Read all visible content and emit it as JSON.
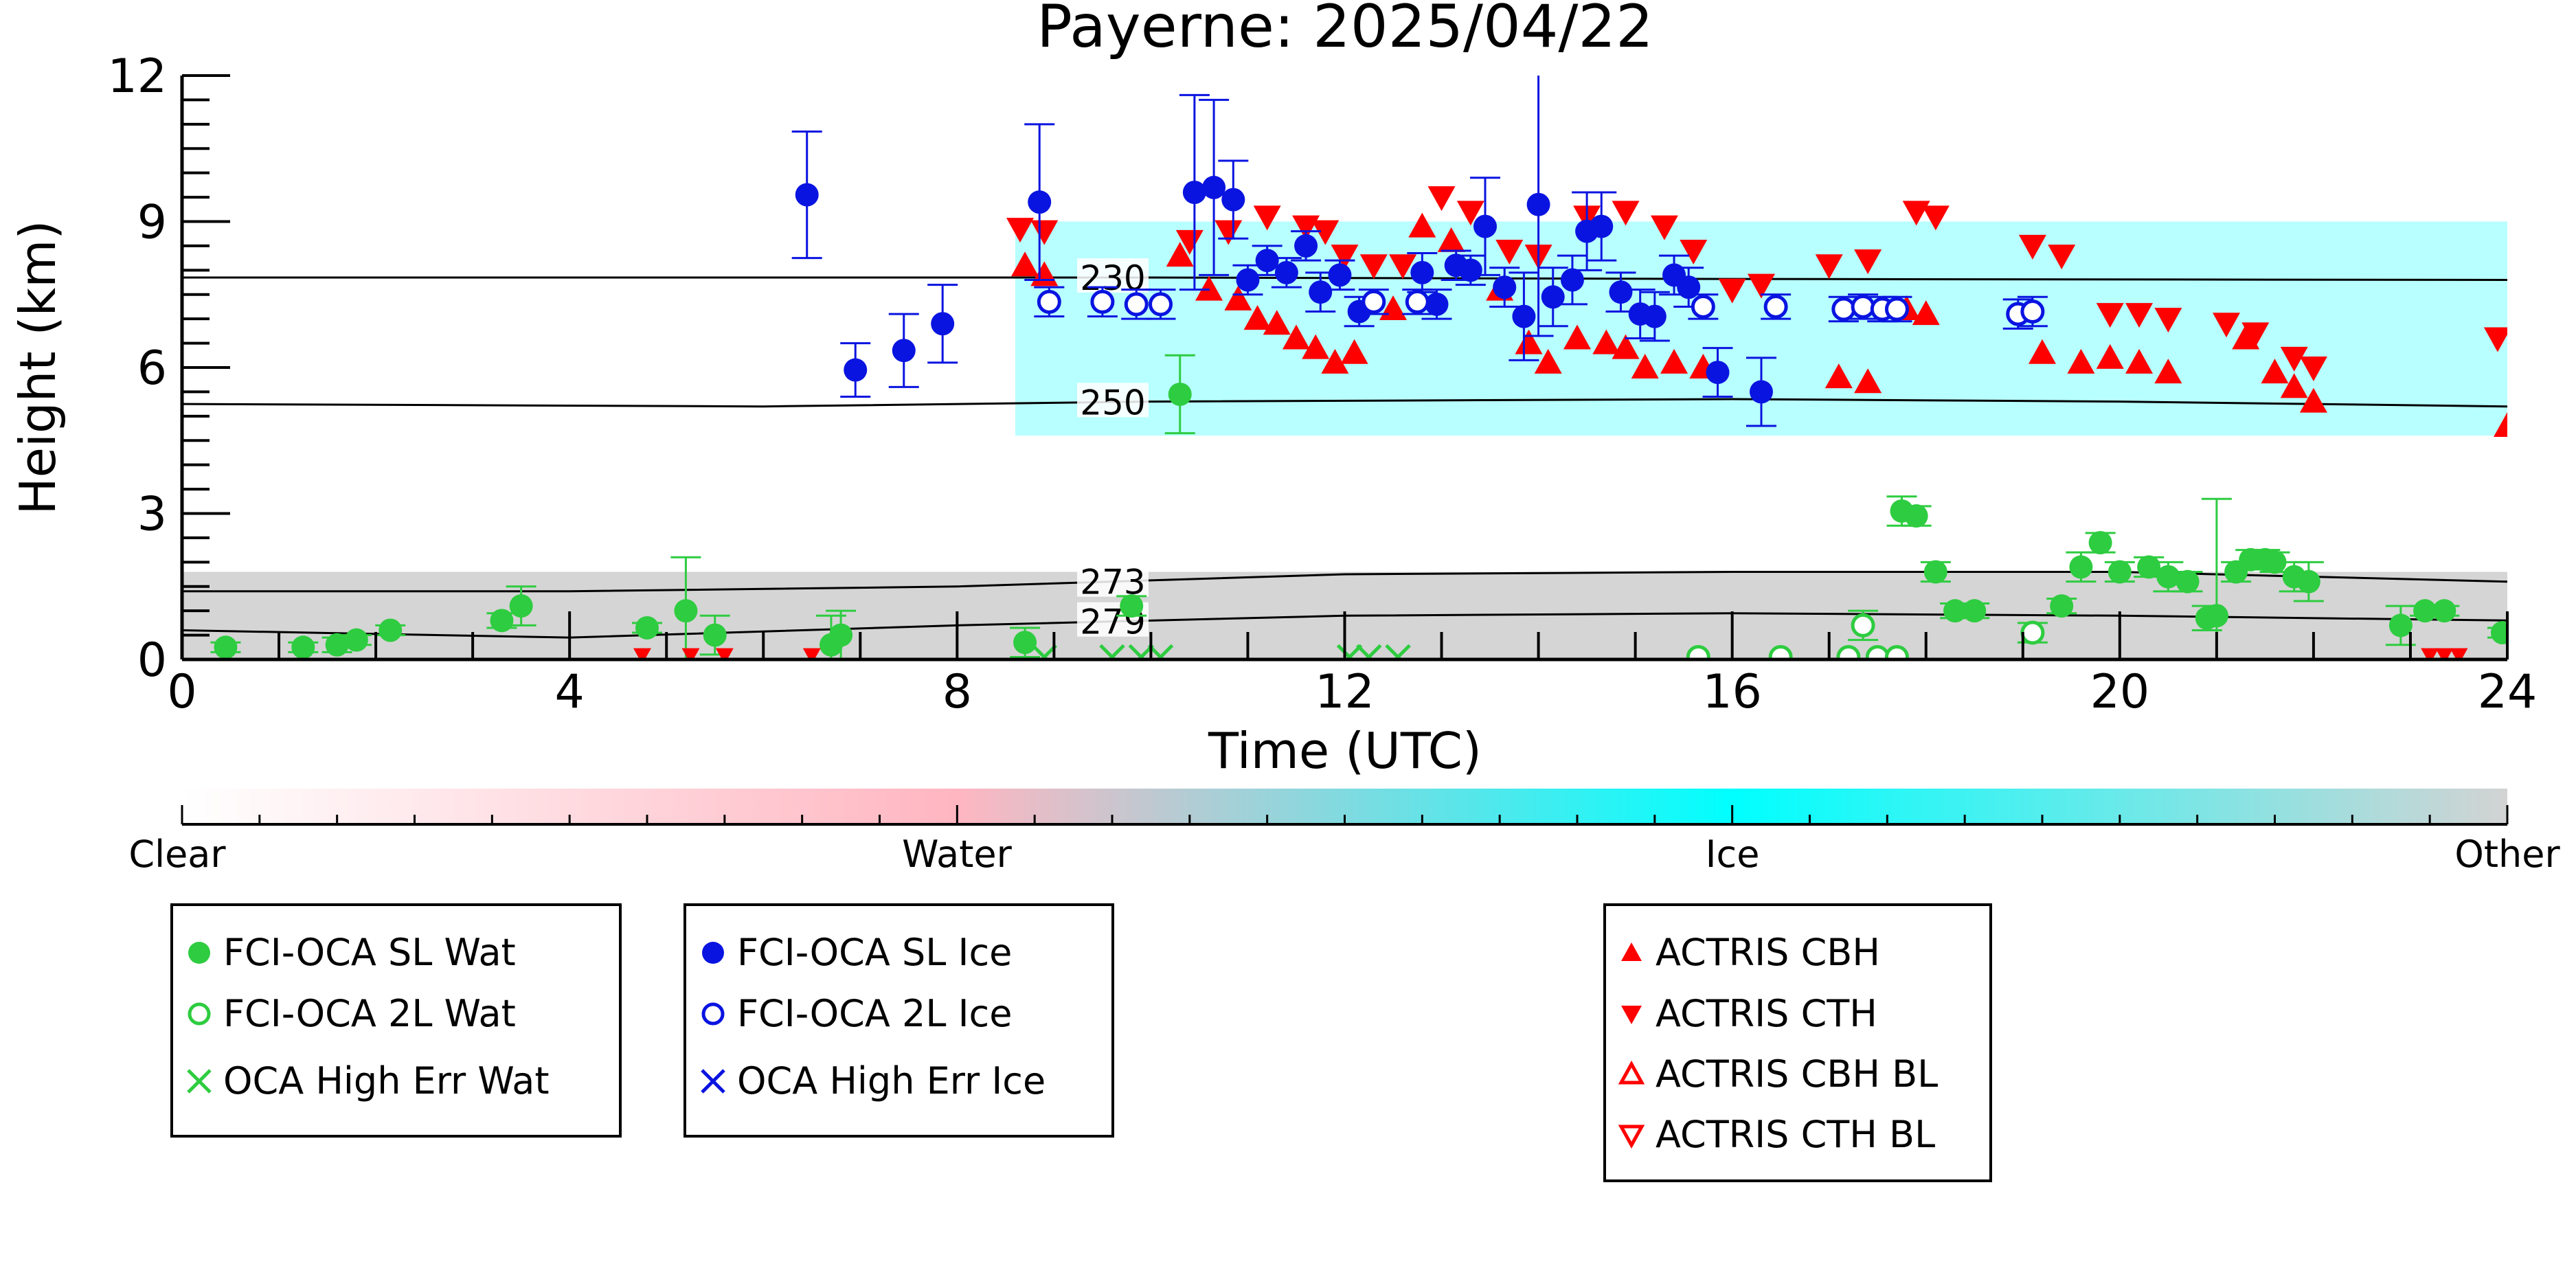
{
  "chart_data": {
    "type": "scatter",
    "title": "Payerne: 2025/04/22",
    "xlabel": "Time (UTC)",
    "ylabel": "Height (km)",
    "xlim": [
      0,
      24
    ],
    "ylim": [
      0,
      12
    ],
    "x_ticks": [
      0,
      4,
      8,
      12,
      16,
      20,
      24
    ],
    "y_ticks": [
      0,
      3,
      6,
      9,
      12
    ],
    "grid": false,
    "colorbar": {
      "labels": [
        "Clear",
        "Water",
        "Ice",
        "Other"
      ],
      "colors": {
        "Clear": "#ffffff",
        "Water": "#ffb6c1",
        "Ice": "#00ffff",
        "Other": "#d3d3d3"
      }
    },
    "background_layers": [
      {
        "class": "Other",
        "x_range": [
          0,
          24
        ],
        "y_range": [
          0,
          1.8
        ],
        "color": "#d3d3d3"
      },
      {
        "class": "Ice",
        "x_range": [
          8.6,
          24
        ],
        "y_range": [
          4.6,
          9.0
        ],
        "color": "#00ffff"
      }
    ],
    "contours": [
      {
        "label": "230",
        "points": [
          [
            0,
            7.85
          ],
          [
            6,
            7.85
          ],
          [
            10,
            7.85
          ],
          [
            16,
            7.82
          ],
          [
            24,
            7.8
          ]
        ]
      },
      {
        "label": "250",
        "points": [
          [
            0,
            5.25
          ],
          [
            6,
            5.2
          ],
          [
            10,
            5.3
          ],
          [
            16,
            5.35
          ],
          [
            20,
            5.3
          ],
          [
            24,
            5.2
          ]
        ]
      },
      {
        "label": "273",
        "points": [
          [
            0,
            1.4
          ],
          [
            4,
            1.4
          ],
          [
            8,
            1.5
          ],
          [
            12,
            1.75
          ],
          [
            16,
            1.8
          ],
          [
            20,
            1.8
          ],
          [
            24,
            1.6
          ]
        ]
      },
      {
        "label": "279",
        "points": [
          [
            0,
            0.6
          ],
          [
            4,
            0.45
          ],
          [
            8,
            0.7
          ],
          [
            12,
            0.9
          ],
          [
            16,
            0.95
          ],
          [
            20,
            0.9
          ],
          [
            24,
            0.8
          ]
        ]
      }
    ],
    "legend": [
      [
        "FCI-OCA SL Wat",
        "FCI-OCA 2L Wat",
        "OCA High Err Wat"
      ],
      [
        "FCI-OCA SL Ice",
        "FCI-OCA 2L Ice",
        "OCA High Err Ice"
      ],
      [
        "ACTRIS CBH",
        "ACTRIS CTH",
        "ACTRIS CBH BL",
        "ACTRIS CTH BL"
      ]
    ],
    "series": [
      {
        "name": "FCI-OCA SL Wat",
        "marker": "circle-filled",
        "color": "#2ecc40",
        "points": [
          [
            0.45,
            0.25,
            0.1
          ],
          [
            1.25,
            0.25,
            0.1
          ],
          [
            1.6,
            0.3,
            0.15
          ],
          [
            1.8,
            0.4,
            0.1
          ],
          [
            2.15,
            0.6,
            0.1
          ],
          [
            3.3,
            0.8,
            0.15
          ],
          [
            3.5,
            1.1,
            0.4
          ],
          [
            4.8,
            0.65,
            0.1
          ],
          [
            5.2,
            1.0,
            1.1
          ],
          [
            5.5,
            0.5,
            0.4
          ],
          [
            6.7,
            0.3,
            0.6
          ],
          [
            6.8,
            0.5,
            0.5
          ],
          [
            8.7,
            0.35,
            0.3
          ],
          [
            9.8,
            1.1,
            0.2
          ],
          [
            10.3,
            5.45,
            0.8
          ],
          [
            17.75,
            3.05,
            0.3
          ],
          [
            17.9,
            2.95,
            0.2
          ],
          [
            18.1,
            1.8,
            0.2
          ],
          [
            18.3,
            1.0,
            0.15
          ],
          [
            18.5,
            1.0,
            0.15
          ],
          [
            19.4,
            1.1,
            0.15
          ],
          [
            19.6,
            1.9,
            0.3
          ],
          [
            19.8,
            2.4,
            0.2
          ],
          [
            20.0,
            1.8,
            0.2
          ],
          [
            20.3,
            1.9,
            0.2
          ],
          [
            20.5,
            1.7,
            0.3
          ],
          [
            20.7,
            1.6,
            0.2
          ],
          [
            20.9,
            0.85,
            0.25
          ],
          [
            21.0,
            0.9,
            2.4
          ],
          [
            21.2,
            1.8,
            0.2
          ],
          [
            21.35,
            2.05,
            0.2
          ],
          [
            21.5,
            2.05,
            0.2
          ],
          [
            21.6,
            2.0,
            0.2
          ],
          [
            21.8,
            1.7,
            0.3
          ],
          [
            21.95,
            1.6,
            0.4
          ],
          [
            22.9,
            0.7,
            0.4
          ],
          [
            23.15,
            1.0,
            0.1
          ],
          [
            23.35,
            1.0,
            0.1
          ],
          [
            23.95,
            0.55,
            0.1
          ]
        ]
      },
      {
        "name": "FCI-OCA 2L Wat",
        "marker": "circle-open",
        "color": "#2ecc40",
        "points": [
          [
            15.65,
            0.05,
            0
          ],
          [
            16.5,
            0.05,
            0
          ],
          [
            17.2,
            0.05,
            0
          ],
          [
            17.35,
            0.7,
            0.3
          ],
          [
            17.5,
            0.05,
            0
          ],
          [
            17.7,
            0.05,
            0
          ],
          [
            19.1,
            0.55,
            0.2
          ]
        ]
      },
      {
        "name": "OCA High Err Wat",
        "marker": "x",
        "color": "#2ecc40",
        "points": [
          [
            8.9,
            0.05
          ],
          [
            9.6,
            0.05
          ],
          [
            9.9,
            0.05
          ],
          [
            10.1,
            0.05
          ],
          [
            12.05,
            0.05
          ],
          [
            12.25,
            0.05
          ],
          [
            12.55,
            0.05
          ]
        ]
      },
      {
        "name": "FCI-OCA SL Ice",
        "marker": "circle-filled",
        "color": "#0a14e0",
        "points": [
          [
            6.45,
            9.55,
            1.3
          ],
          [
            6.95,
            5.95,
            0.55
          ],
          [
            7.45,
            6.35,
            0.75
          ],
          [
            7.85,
            6.9,
            0.8
          ],
          [
            8.85,
            9.4,
            1.6
          ],
          [
            10.45,
            9.6,
            2.0
          ],
          [
            10.65,
            9.7,
            1.8
          ],
          [
            10.85,
            9.45,
            0.8
          ],
          [
            11.0,
            7.8,
            0.3
          ],
          [
            11.2,
            8.2,
            0.3
          ],
          [
            11.4,
            7.95,
            0.3
          ],
          [
            11.6,
            8.5,
            0.3
          ],
          [
            11.75,
            7.55,
            0.4
          ],
          [
            11.95,
            7.9,
            0.3
          ],
          [
            12.15,
            7.15,
            0.3
          ],
          [
            12.8,
            7.95,
            0.4
          ],
          [
            12.95,
            7.3,
            0.3
          ],
          [
            13.15,
            8.1,
            0.3
          ],
          [
            13.3,
            8.0,
            0.3
          ],
          [
            13.45,
            8.9,
            1.0
          ],
          [
            13.65,
            7.65,
            0.4
          ],
          [
            13.85,
            7.05,
            0.9
          ],
          [
            14.0,
            9.35,
            2.7
          ],
          [
            14.15,
            7.45,
            0.6
          ],
          [
            14.35,
            7.8,
            0.5
          ],
          [
            14.5,
            8.8,
            0.8
          ],
          [
            14.65,
            8.9,
            0.7
          ],
          [
            14.85,
            7.55,
            0.4
          ],
          [
            15.05,
            7.1,
            0.5
          ],
          [
            15.2,
            7.05,
            0.5
          ],
          [
            15.4,
            7.9,
            0.4
          ],
          [
            15.55,
            7.65,
            0.4
          ],
          [
            15.85,
            5.9,
            0.5
          ],
          [
            16.3,
            5.5,
            0.7
          ]
        ]
      },
      {
        "name": "FCI-OCA 2L Ice",
        "marker": "circle-open",
        "color": "#0a14e0",
        "points": [
          [
            8.95,
            7.35,
            0.3
          ],
          [
            9.5,
            7.35,
            0.3
          ],
          [
            9.85,
            7.3,
            0.3
          ],
          [
            10.1,
            7.3,
            0.3
          ],
          [
            12.3,
            7.35,
            0.25
          ],
          [
            12.75,
            7.35,
            0.25
          ],
          [
            15.7,
            7.25,
            0.25
          ],
          [
            16.45,
            7.25,
            0.25
          ],
          [
            17.15,
            7.2,
            0.25
          ],
          [
            17.35,
            7.25,
            0.25
          ],
          [
            17.55,
            7.2,
            0.25
          ],
          [
            17.7,
            7.2,
            0.25
          ],
          [
            18.95,
            7.1,
            0.3
          ],
          [
            19.1,
            7.15,
            0.3
          ]
        ]
      },
      {
        "name": "OCA High Err Ice",
        "marker": "x",
        "color": "#0a14e0",
        "points": []
      },
      {
        "name": "ACTRIS CBH",
        "marker": "triangle-up-filled",
        "color": "#ff0000",
        "points": [
          [
            8.7,
            8.1
          ],
          [
            8.9,
            7.9
          ],
          [
            10.3,
            8.3
          ],
          [
            10.6,
            7.6
          ],
          [
            10.9,
            7.4
          ],
          [
            11.1,
            7.0
          ],
          [
            11.3,
            6.9
          ],
          [
            11.5,
            6.6
          ],
          [
            11.7,
            6.4
          ],
          [
            11.9,
            6.1
          ],
          [
            12.1,
            6.3
          ],
          [
            12.5,
            7.2
          ],
          [
            12.8,
            8.9
          ],
          [
            13.1,
            8.6
          ],
          [
            13.6,
            7.6
          ],
          [
            13.9,
            6.5
          ],
          [
            14.1,
            6.1
          ],
          [
            14.4,
            6.6
          ],
          [
            14.7,
            6.5
          ],
          [
            14.9,
            6.4
          ],
          [
            15.1,
            6.0
          ],
          [
            15.4,
            6.1
          ],
          [
            15.7,
            6.0
          ],
          [
            17.1,
            5.8
          ],
          [
            17.4,
            5.7
          ],
          [
            17.8,
            7.2
          ],
          [
            18.0,
            7.1
          ],
          [
            19.2,
            6.3
          ],
          [
            19.6,
            6.1
          ],
          [
            19.9,
            6.2
          ],
          [
            20.2,
            6.1
          ],
          [
            20.5,
            5.9
          ],
          [
            21.3,
            6.6
          ],
          [
            21.6,
            5.9
          ],
          [
            21.8,
            5.6
          ],
          [
            22.0,
            5.3
          ],
          [
            24.0,
            4.8
          ]
        ]
      },
      {
        "name": "ACTRIS CTH",
        "marker": "triangle-down-filled",
        "color": "#ff0000",
        "points": [
          [
            8.65,
            8.85
          ],
          [
            8.9,
            8.8
          ],
          [
            10.4,
            8.6
          ],
          [
            10.8,
            8.8
          ],
          [
            11.2,
            9.1
          ],
          [
            11.6,
            8.9
          ],
          [
            11.8,
            8.8
          ],
          [
            12.0,
            8.3
          ],
          [
            12.3,
            8.1
          ],
          [
            12.6,
            8.1
          ],
          [
            13.0,
            9.5
          ],
          [
            13.3,
            9.2
          ],
          [
            13.7,
            8.4
          ],
          [
            14.0,
            8.3
          ],
          [
            14.5,
            9.1
          ],
          [
            14.9,
            9.2
          ],
          [
            15.3,
            8.9
          ],
          [
            15.6,
            8.4
          ],
          [
            16.0,
            7.6
          ],
          [
            16.3,
            7.7
          ],
          [
            17.0,
            8.1
          ],
          [
            17.4,
            8.2
          ],
          [
            17.9,
            9.2
          ],
          [
            18.1,
            9.1
          ],
          [
            19.1,
            8.5
          ],
          [
            19.4,
            8.3
          ],
          [
            19.9,
            7.1
          ],
          [
            20.2,
            7.1
          ],
          [
            20.5,
            7.0
          ],
          [
            21.1,
            6.9
          ],
          [
            21.4,
            6.7
          ],
          [
            21.8,
            6.2
          ],
          [
            22.0,
            6.0
          ],
          [
            23.9,
            6.6
          ]
        ]
      },
      {
        "name": "ACTRIS CBH BL",
        "marker": "triangle-up-open",
        "color": "#ff0000",
        "points": []
      },
      {
        "name": "ACTRIS CTH BL",
        "marker": "triangle-down-open",
        "color": "#ff0000",
        "points": []
      }
    ],
    "surface_triangles": {
      "color": "#ff0000",
      "x": [
        4.75,
        5.25,
        5.6,
        6.5,
        23.2,
        23.35,
        23.5
      ]
    }
  }
}
